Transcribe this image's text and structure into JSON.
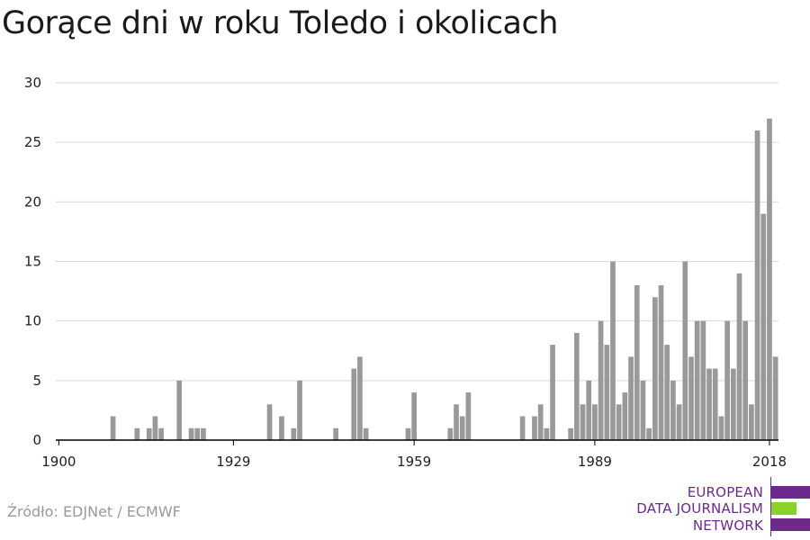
{
  "title": "Gorące dni w roku Toledo i okolicach",
  "source": "Źródło: EDJNet / ECMWF",
  "logo": {
    "lines": [
      "EUROPEAN",
      "DATA JOURNALISM",
      "NETWORK"
    ],
    "colors": {
      "purple": "#6b2a8c",
      "green": "#8bd12a"
    }
  },
  "colors": {
    "bar": "#999999",
    "grid": "#d9d9d9",
    "axis": "#000000"
  },
  "chart_data": {
    "type": "bar",
    "title": "Gorące dni w roku Toledo i okolicach",
    "xlabel": "",
    "ylabel": "",
    "xlim": [
      1900,
      2019
    ],
    "ylim": [
      0,
      30
    ],
    "yticks": [
      0,
      5,
      10,
      15,
      20,
      25,
      30
    ],
    "xticks": [
      1900,
      1929,
      1959,
      1989,
      2018
    ],
    "grid": true,
    "x": [
      1909,
      1913,
      1915,
      1916,
      1917,
      1920,
      1922,
      1923,
      1924,
      1935,
      1937,
      1939,
      1940,
      1946,
      1949,
      1950,
      1951,
      1958,
      1959,
      1965,
      1966,
      1967,
      1968,
      1977,
      1979,
      1980,
      1981,
      1982,
      1985,
      1986,
      1987,
      1988,
      1989,
      1990,
      1991,
      1992,
      1993,
      1994,
      1995,
      1996,
      1997,
      1998,
      1999,
      2000,
      2001,
      2002,
      2003,
      2004,
      2005,
      2006,
      2007,
      2008,
      2009,
      2010,
      2011,
      2012,
      2013,
      2014,
      2015,
      2016,
      2017,
      2018,
      2019
    ],
    "values": [
      2,
      1,
      1,
      2,
      1,
      5,
      1,
      1,
      1,
      3,
      2,
      1,
      5,
      1,
      6,
      7,
      1,
      1,
      4,
      1,
      3,
      2,
      4,
      2,
      2,
      3,
      1,
      8,
      1,
      9,
      3,
      5,
      3,
      10,
      8,
      15,
      3,
      4,
      7,
      13,
      5,
      1,
      12,
      13,
      8,
      5,
      3,
      15,
      7,
      10,
      10,
      6,
      6,
      2,
      10,
      6,
      14,
      10,
      3,
      26,
      19,
      27,
      7
    ]
  }
}
